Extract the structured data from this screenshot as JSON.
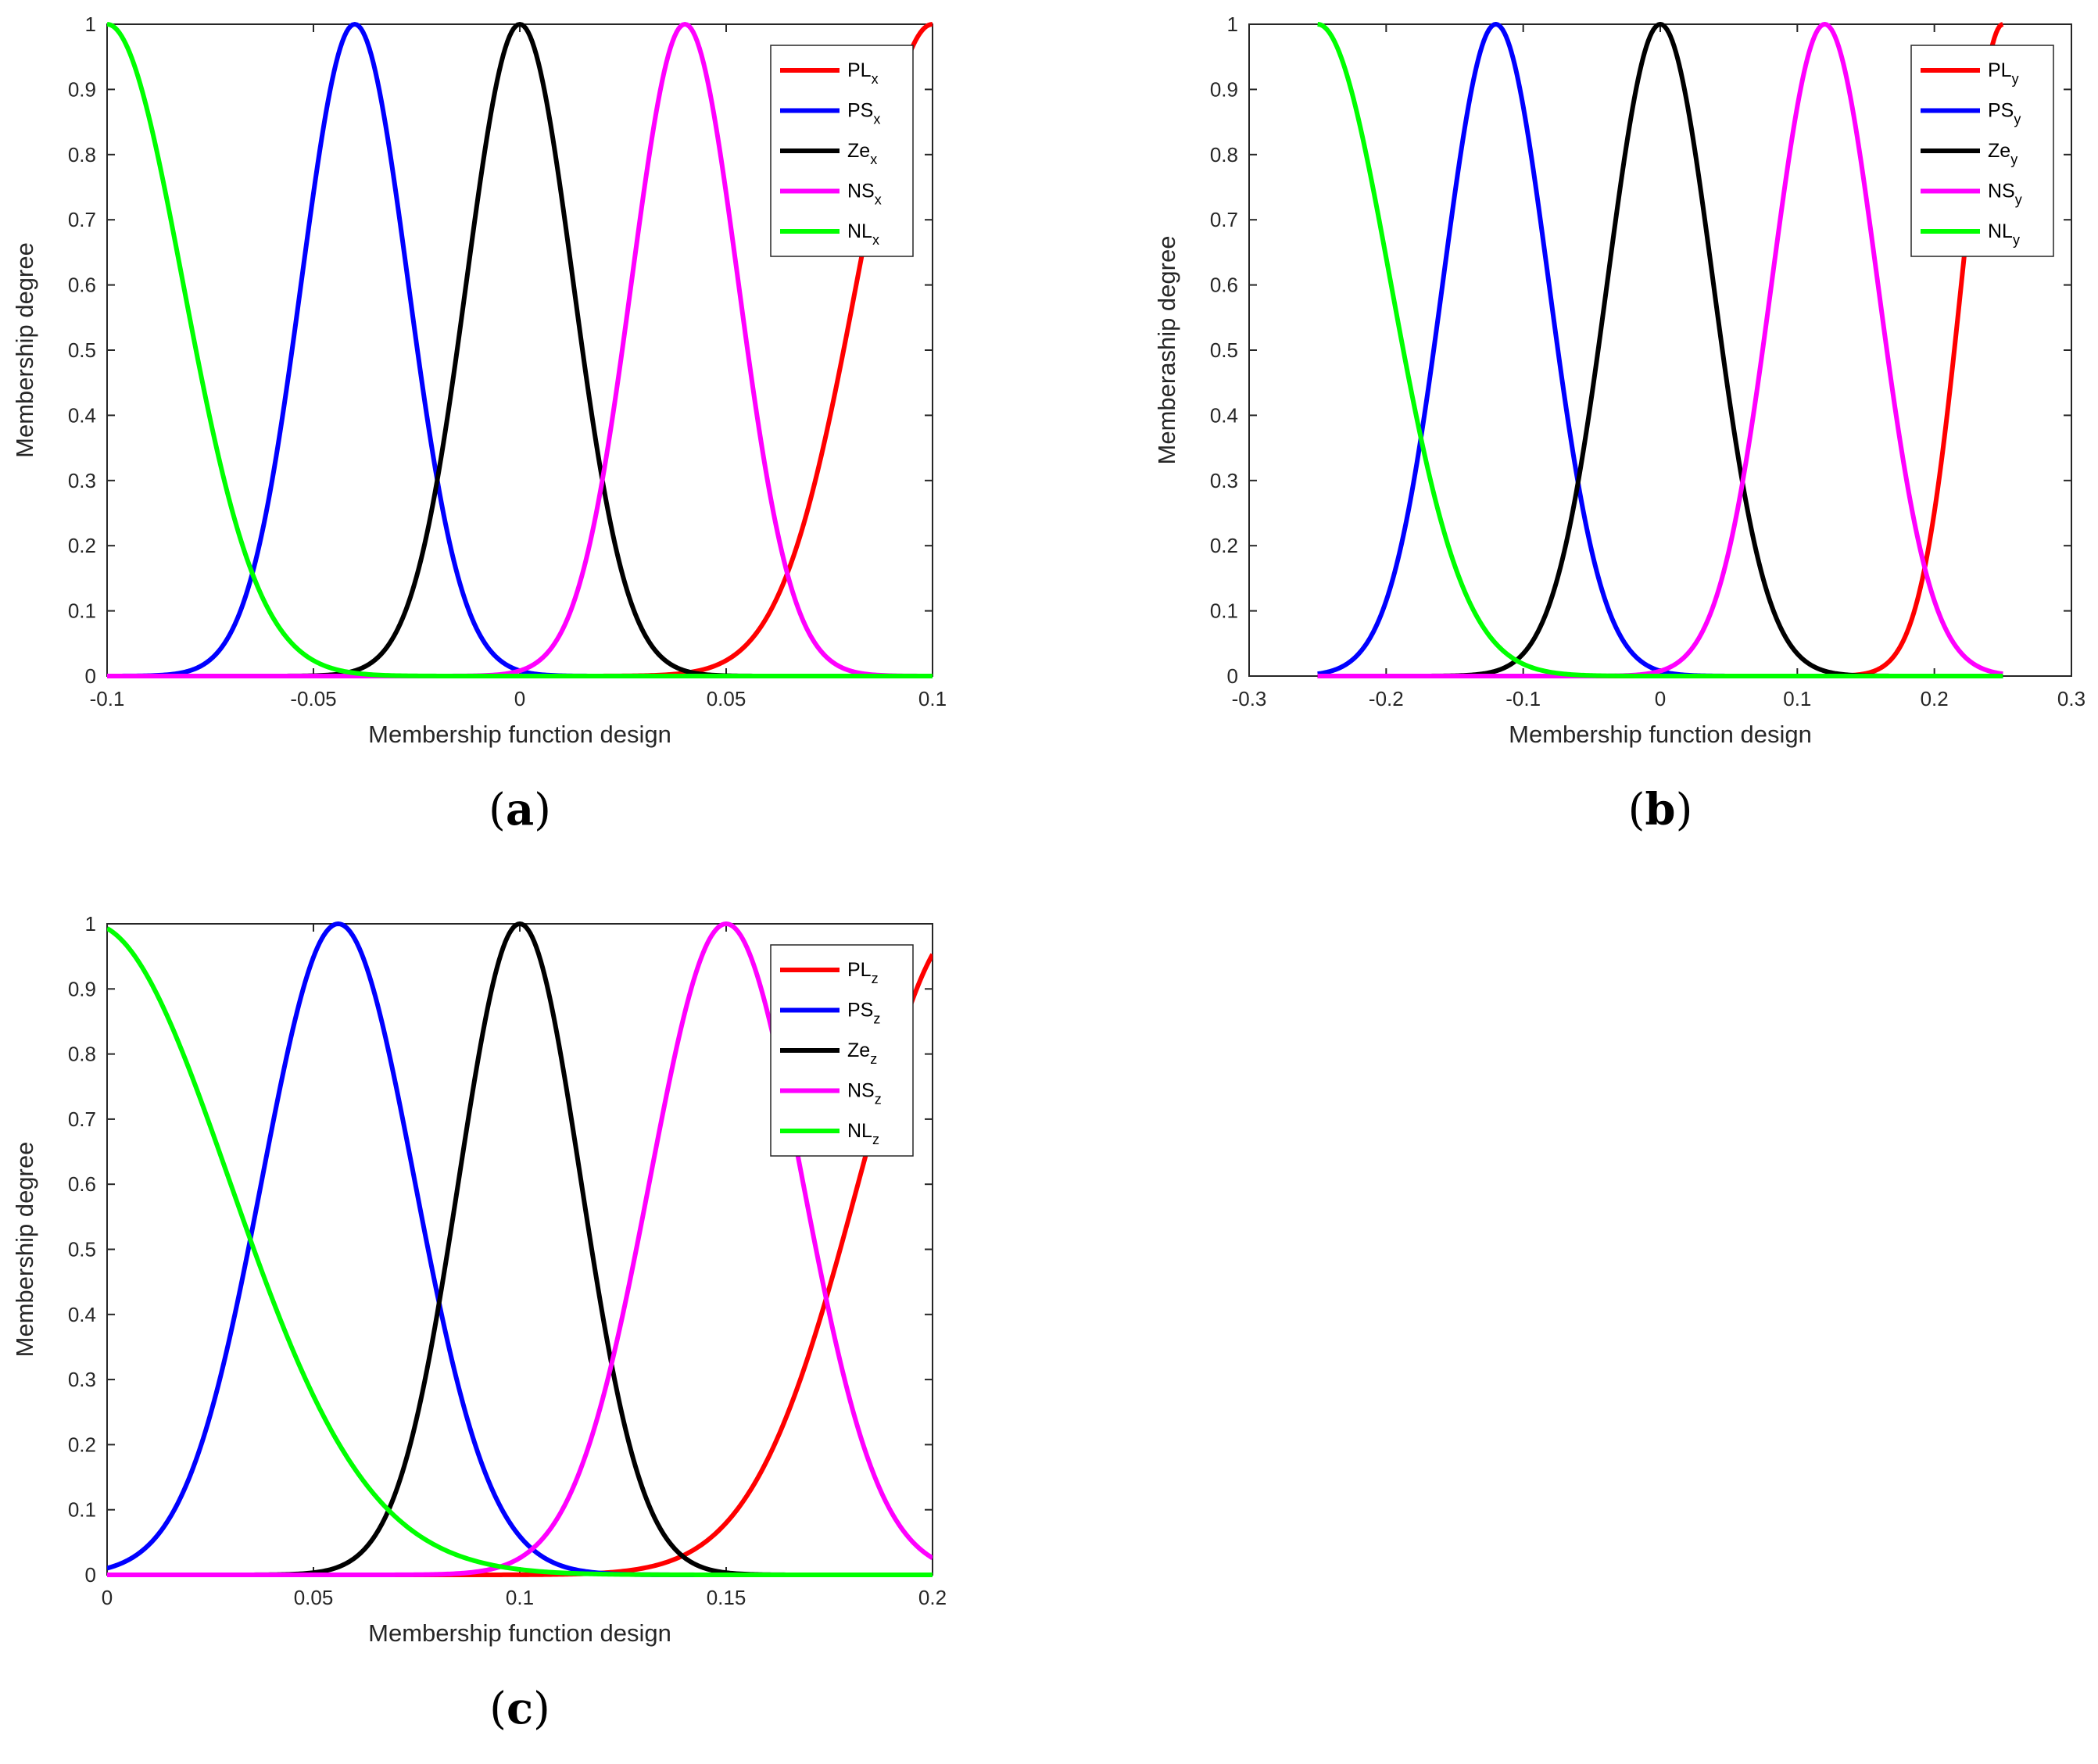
{
  "figure": {
    "colors": {
      "PL": "#ff0000",
      "PS": "#0000ff",
      "Ze": "#000000",
      "NS": "#ff00ff",
      "NL": "#00ff00",
      "axis": "#262626"
    }
  },
  "chart_data": [
    {
      "type": "line",
      "panel_label": "a",
      "xlabel": "Membership function design",
      "ylabel": "Membership degree",
      "xlim": [
        -0.1,
        0.1
      ],
      "ylim": [
        0,
        1
      ],
      "xticks": [
        -0.1,
        -0.05,
        0,
        0.05,
        0.1
      ],
      "xtick_labels": [
        "-0.1",
        "-0.05",
        "0",
        "0.05",
        "0.1"
      ],
      "yticks": [
        0,
        0.1,
        0.2,
        0.3,
        0.4,
        0.5,
        0.6,
        0.7,
        0.8,
        0.9,
        1
      ],
      "ytick_labels": [
        "0",
        "0.1",
        "0.2",
        "0.3",
        "0.4",
        "0.5",
        "0.6",
        "0.7",
        "0.8",
        "0.9",
        "1"
      ],
      "legend_position": "top-right",
      "series": [
        {
          "name": "PL",
          "subscript": "x",
          "color_key": "PL",
          "shape": "right",
          "center": 0.1,
          "sigma": 0.0183,
          "x_range": [
            -0.1,
            0.1
          ]
        },
        {
          "name": "PS",
          "subscript": "x",
          "color_key": "PS",
          "shape": "gauss",
          "center": -0.04,
          "sigma": 0.0129,
          "x_range": [
            -0.1,
            0.1
          ]
        },
        {
          "name": "Ze",
          "subscript": "x",
          "color_key": "Ze",
          "shape": "gauss",
          "center": 0,
          "sigma": 0.0129,
          "x_range": [
            -0.1,
            0.1
          ]
        },
        {
          "name": "NS",
          "subscript": "x",
          "color_key": "NS",
          "shape": "gauss",
          "center": 0.04,
          "sigma": 0.0129,
          "x_range": [
            -0.1,
            0.1
          ]
        },
        {
          "name": "NL",
          "subscript": "x",
          "color_key": "NL",
          "shape": "left",
          "center": -0.1,
          "sigma": 0.0183,
          "x_range": [
            -0.1,
            0.1
          ]
        }
      ]
    },
    {
      "type": "line",
      "panel_label": "b",
      "xlabel": "Membership function design",
      "ylabel": "Memberaship degree",
      "xlim": [
        -0.3,
        0.3
      ],
      "ylim": [
        0,
        1
      ],
      "xticks": [
        -0.3,
        -0.2,
        -0.1,
        0,
        0.1,
        0.2,
        0.3
      ],
      "xtick_labels": [
        "-0.3",
        "-0.2",
        "-0.1",
        "0",
        "0.1",
        "0.2",
        "0.3"
      ],
      "yticks": [
        0,
        0.1,
        0.2,
        0.3,
        0.4,
        0.5,
        0.6,
        0.7,
        0.8,
        0.9,
        1
      ],
      "ytick_labels": [
        "0",
        "0.1",
        "0.2",
        "0.3",
        "0.4",
        "0.5",
        "0.6",
        "0.7",
        "0.8",
        "0.9",
        "1"
      ],
      "legend_position": "top-right",
      "series": [
        {
          "name": "PL",
          "subscript": "y",
          "color_key": "PL",
          "shape": "right",
          "center": 0.25,
          "sigma": 0.0301,
          "x_range": [
            -0.25,
            0.25
          ]
        },
        {
          "name": "PS",
          "subscript": "y",
          "color_key": "PS",
          "shape": "gauss",
          "center": -0.12,
          "sigma": 0.0385,
          "x_range": [
            -0.25,
            0.25
          ]
        },
        {
          "name": "Ze",
          "subscript": "y",
          "color_key": "Ze",
          "shape": "gauss",
          "center": 0,
          "sigma": 0.0385,
          "x_range": [
            -0.25,
            0.25
          ]
        },
        {
          "name": "NS",
          "subscript": "y",
          "color_key": "NS",
          "shape": "gauss",
          "center": 0.12,
          "sigma": 0.0385,
          "x_range": [
            -0.25,
            0.25
          ]
        },
        {
          "name": "NL",
          "subscript": "y",
          "color_key": "NL",
          "shape": "left",
          "center": -0.25,
          "sigma": 0.0531,
          "x_range": [
            -0.25,
            0.25
          ]
        }
      ]
    },
    {
      "type": "line",
      "panel_label": "c",
      "xlabel": "Membership function design",
      "ylabel": "Membership degree",
      "xlim": [
        0,
        0.2
      ],
      "ylim": [
        0,
        1
      ],
      "xticks": [
        0,
        0.05,
        0.1,
        0.15,
        0.2
      ],
      "xtick_labels": [
        "0",
        "0.05",
        "0.1",
        "0.15",
        "0.2"
      ],
      "yticks": [
        0,
        0.1,
        0.2,
        0.3,
        0.4,
        0.5,
        0.6,
        0.7,
        0.8,
        0.9,
        1
      ],
      "ytick_labels": [
        "0",
        "0.1",
        "0.2",
        "0.3",
        "0.4",
        "0.5",
        "0.6",
        "0.7",
        "0.8",
        "0.9",
        "1"
      ],
      "legend_position": "top-right",
      "series": [
        {
          "name": "PL",
          "subscript": "z",
          "color_key": "PL",
          "shape": "gauss",
          "center": 0.208,
          "sigma": 0.0258,
          "x_range": [
            0,
            0.2
          ]
        },
        {
          "name": "PS",
          "subscript": "z",
          "color_key": "PS",
          "shape": "gauss",
          "center": 0.056,
          "sigma": 0.0185,
          "x_range": [
            0,
            0.2
          ]
        },
        {
          "name": "Ze",
          "subscript": "z",
          "color_key": "Ze",
          "shape": "gauss",
          "center": 0.1,
          "sigma": 0.0148,
          "x_range": [
            0,
            0.2
          ]
        },
        {
          "name": "NS",
          "subscript": "z",
          "color_key": "NS",
          "shape": "gauss",
          "center": 0.15,
          "sigma": 0.0185,
          "x_range": [
            0,
            0.2
          ]
        },
        {
          "name": "NL",
          "subscript": "z",
          "color_key": "NL",
          "shape": "gauss",
          "center": -0.004,
          "sigma": 0.0336,
          "x_range": [
            0,
            0.2
          ]
        }
      ]
    }
  ]
}
